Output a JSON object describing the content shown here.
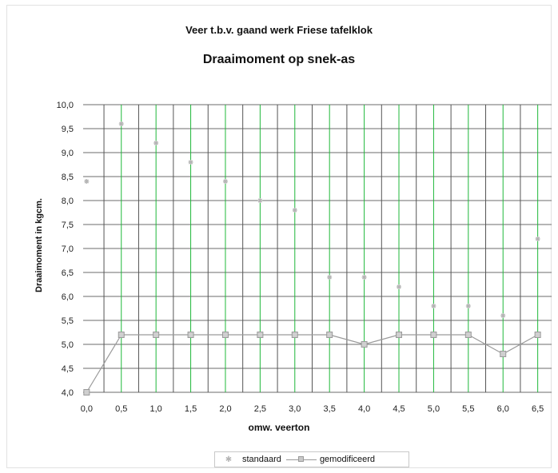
{
  "chart_data": {
    "type": "scatter",
    "subtitle": "Veer t.b.v. gaand werk Friese tafelklok",
    "title": "Draaimoment op snek-as",
    "xlabel": "omw. veerton",
    "ylabel": "Draaimoment in kgcm.",
    "x_ticks": [
      "0,0",
      "0,5",
      "1,0",
      "1,5",
      "2,0",
      "2,5",
      "3,0",
      "3,5",
      "4,0",
      "4,5",
      "5,0",
      "5,5",
      "6,0",
      "6,5"
    ],
    "y_ticks": [
      "4,0",
      "4,5",
      "5,0",
      "5,5",
      "6,0",
      "6,5",
      "7,0",
      "7,5",
      "8,0",
      "8,5",
      "9,0",
      "9,5",
      "10,0"
    ],
    "xlim": [
      -0.05,
      6.7
    ],
    "ylim": [
      4.0,
      10.0
    ],
    "grid": true,
    "legend": "bottom",
    "series": [
      {
        "name": "standaard",
        "style": "markers",
        "color": "#b5b5b5",
        "x": [
          0.0,
          0.5,
          1.0,
          1.5,
          2.0,
          2.5,
          3.0,
          3.5,
          4.0,
          4.5,
          5.0,
          5.5,
          6.0,
          6.5
        ],
        "y": [
          8.4,
          9.6,
          9.2,
          8.8,
          8.4,
          8.0,
          7.8,
          6.4,
          6.4,
          6.2,
          5.8,
          5.8,
          5.6,
          7.2
        ]
      },
      {
        "name": "gemodificeerd",
        "style": "line+markers",
        "color": "#9a9a9a",
        "x": [
          0.0,
          0.5,
          1.0,
          1.5,
          2.0,
          2.5,
          3.0,
          3.5,
          4.0,
          4.5,
          5.0,
          5.5,
          6.0,
          6.5
        ],
        "y": [
          4.0,
          5.2,
          5.2,
          5.2,
          5.2,
          5.2,
          5.2,
          5.2,
          5.0,
          5.2,
          5.2,
          5.2,
          4.8,
          5.2
        ]
      }
    ]
  },
  "colors": {
    "green_gridline": "#1fb83a",
    "dark_gridline": "#555555",
    "standaard": "#b5b5b5",
    "gemodificeerd": "#9a9a9a"
  }
}
